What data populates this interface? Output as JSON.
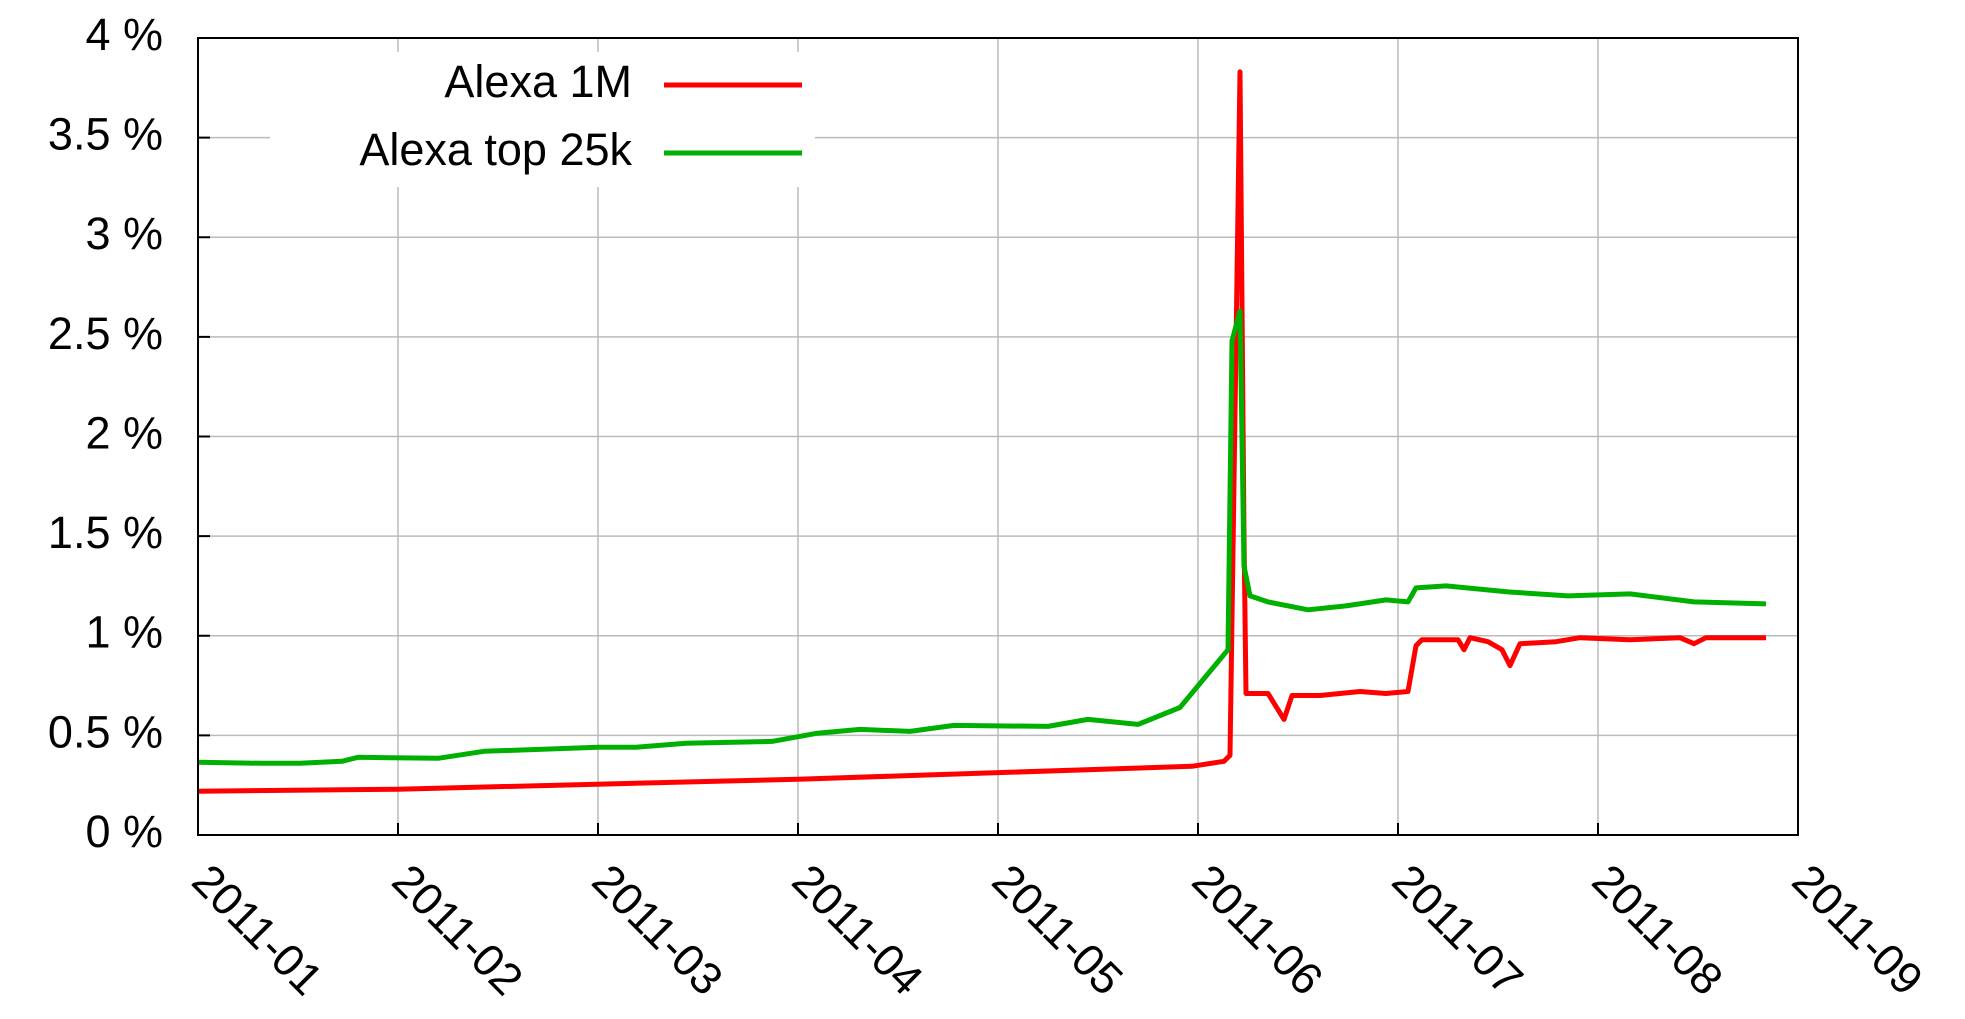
{
  "chart_data": {
    "type": "line",
    "xlim": [
      1,
      9
    ],
    "xticks": [
      {
        "value": 1,
        "label": "2011-01"
      },
      {
        "value": 2,
        "label": "2011-02"
      },
      {
        "value": 3,
        "label": "2011-03"
      },
      {
        "value": 4,
        "label": "2011-04"
      },
      {
        "value": 5,
        "label": "2011-05"
      },
      {
        "value": 6,
        "label": "2011-06"
      },
      {
        "value": 7,
        "label": "2011-07"
      },
      {
        "value": 8,
        "label": "2011-08"
      },
      {
        "value": 9,
        "label": "2011-09"
      }
    ],
    "ylim": [
      0,
      4
    ],
    "yticks": [
      {
        "value": 0,
        "label": "0 %"
      },
      {
        "value": 0.5,
        "label": "0.5 %"
      },
      {
        "value": 1,
        "label": "1 %"
      },
      {
        "value": 1.5,
        "label": "1.5 %"
      },
      {
        "value": 2,
        "label": "2 %"
      },
      {
        "value": 2.5,
        "label": "2.5 %"
      },
      {
        "value": 3,
        "label": "3 %"
      },
      {
        "value": 3.5,
        "label": "3.5 %"
      },
      {
        "value": 4,
        "label": "4 %"
      }
    ],
    "grid": true,
    "legend": "upper left",
    "series": [
      {
        "name": "Alexa 1M",
        "color": "#ff0000",
        "x": [
          1.0,
          2.0,
          4.0,
          5.97,
          6.13,
          6.16,
          6.21,
          6.23,
          6.24,
          6.35,
          6.43,
          6.47,
          6.61,
          6.81,
          6.94,
          7.05,
          7.09,
          7.12,
          7.3,
          7.33,
          7.36,
          7.45,
          7.52,
          7.56,
          7.61,
          7.79,
          7.91,
          8.16,
          8.41,
          8.48,
          8.54,
          8.84
        ],
        "values": [
          0.22,
          0.23,
          0.28,
          0.345,
          0.37,
          0.4,
          3.83,
          1.5,
          0.71,
          0.71,
          0.58,
          0.7,
          0.7,
          0.72,
          0.71,
          0.72,
          0.95,
          0.98,
          0.98,
          0.93,
          0.99,
          0.97,
          0.93,
          0.85,
          0.96,
          0.97,
          0.99,
          0.98,
          0.99,
          0.96,
          0.99,
          0.99
        ]
      },
      {
        "name": "Alexa top 25k",
        "color": "#00b000",
        "x": [
          1.0,
          1.32,
          1.51,
          1.72,
          1.8,
          2.2,
          2.43,
          3.0,
          3.19,
          3.44,
          3.87,
          4.09,
          4.31,
          4.56,
          4.78,
          5.25,
          5.45,
          5.7,
          5.91,
          6.15,
          6.17,
          6.21,
          6.23,
          6.26,
          6.35,
          6.55,
          6.74,
          6.94,
          7.05,
          7.09,
          7.24,
          7.55,
          7.85,
          8.16,
          8.48,
          8.84
        ],
        "values": [
          0.365,
          0.36,
          0.36,
          0.37,
          0.39,
          0.385,
          0.42,
          0.44,
          0.44,
          0.46,
          0.47,
          0.51,
          0.53,
          0.52,
          0.55,
          0.545,
          0.58,
          0.555,
          0.64,
          0.93,
          2.48,
          2.63,
          1.35,
          1.2,
          1.17,
          1.13,
          1.15,
          1.18,
          1.17,
          1.24,
          1.25,
          1.22,
          1.2,
          1.21,
          1.17,
          1.16
        ]
      }
    ]
  }
}
